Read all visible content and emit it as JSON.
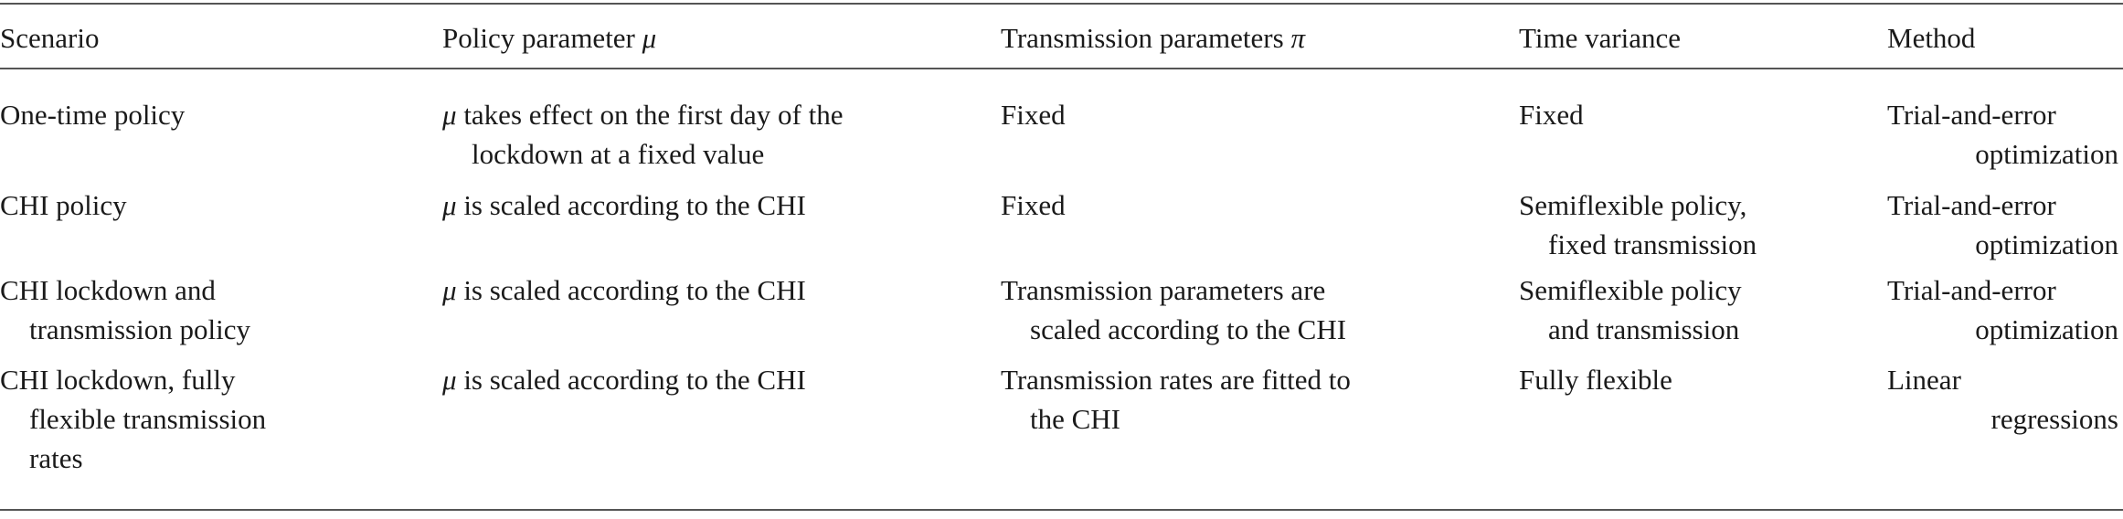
{
  "table": {
    "headers": [
      "Scenario",
      "Policy parameter μ",
      "Transmission parameters π",
      "Time variance",
      "Method"
    ],
    "rows": [
      {
        "scenario": [
          "One-time policy"
        ],
        "policy": [
          "μ takes effect on the first day of the",
          "lockdown at a fixed value"
        ],
        "transmission": [
          "Fixed"
        ],
        "time_variance": [
          "Fixed"
        ],
        "method": [
          "Trial-and-error",
          "optimization"
        ]
      },
      {
        "scenario": [
          "CHI policy"
        ],
        "policy": [
          "μ is scaled according to the CHI"
        ],
        "transmission": [
          "Fixed"
        ],
        "time_variance": [
          "Semiflexible policy,",
          "fixed transmission"
        ],
        "method": [
          "Trial-and-error",
          "optimization"
        ]
      },
      {
        "scenario": [
          "CHI lockdown and",
          "transmission policy"
        ],
        "policy": [
          "μ is scaled according to the CHI"
        ],
        "transmission": [
          "Transmission parameters are",
          "scaled according to the CHI"
        ],
        "time_variance": [
          "Semiflexible policy",
          "and transmission"
        ],
        "method": [
          "Trial-and-error",
          "optimization"
        ]
      },
      {
        "scenario": [
          "CHI lockdown, fully",
          "flexible transmission",
          "rates"
        ],
        "policy": [
          "μ is scaled according to the CHI"
        ],
        "transmission": [
          "Transmission rates are fitted to",
          "the CHI"
        ],
        "time_variance": [
          "Fully flexible"
        ],
        "method": [
          "Linear",
          "regressions"
        ]
      }
    ]
  }
}
